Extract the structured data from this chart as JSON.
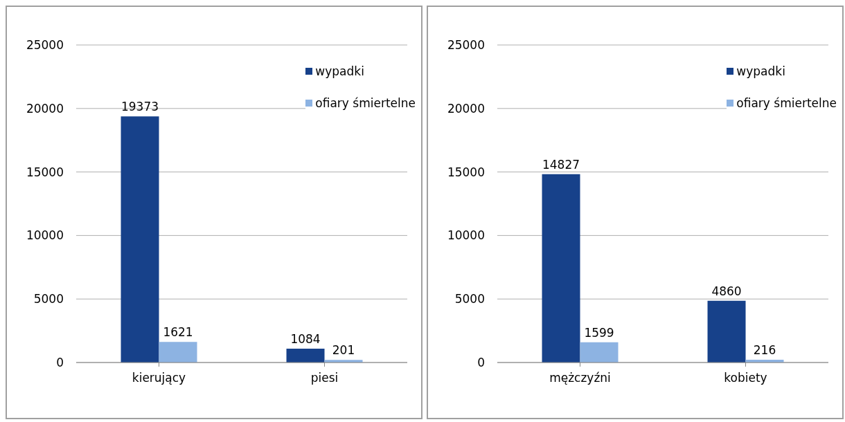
{
  "chart_data": [
    {
      "type": "bar",
      "categories": [
        "kierujący",
        "piesi"
      ],
      "series": [
        {
          "name": "wypadki",
          "color": "#17418a",
          "values": [
            19373,
            1084
          ]
        },
        {
          "name": "ofiary śmiertelne",
          "color": "#8db3e2",
          "values": [
            1621,
            201
          ]
        }
      ],
      "ylim": [
        0,
        25000
      ],
      "yticks": [
        0,
        5000,
        10000,
        15000,
        20000,
        25000
      ],
      "grid": "y",
      "legend": "top right",
      "data_labels": true
    },
    {
      "type": "bar",
      "categories": [
        "mężczyźni",
        "kobiety"
      ],
      "series": [
        {
          "name": "wypadki",
          "color": "#17418a",
          "values": [
            14827,
            4860
          ]
        },
        {
          "name": "ofiary śmiertelne",
          "color": "#8db3e2",
          "values": [
            1599,
            216
          ]
        }
      ],
      "ylim": [
        0,
        25000
      ],
      "yticks": [
        0,
        5000,
        10000,
        15000,
        20000,
        25000
      ],
      "grid": "y",
      "legend": "top right",
      "data_labels": true
    }
  ]
}
